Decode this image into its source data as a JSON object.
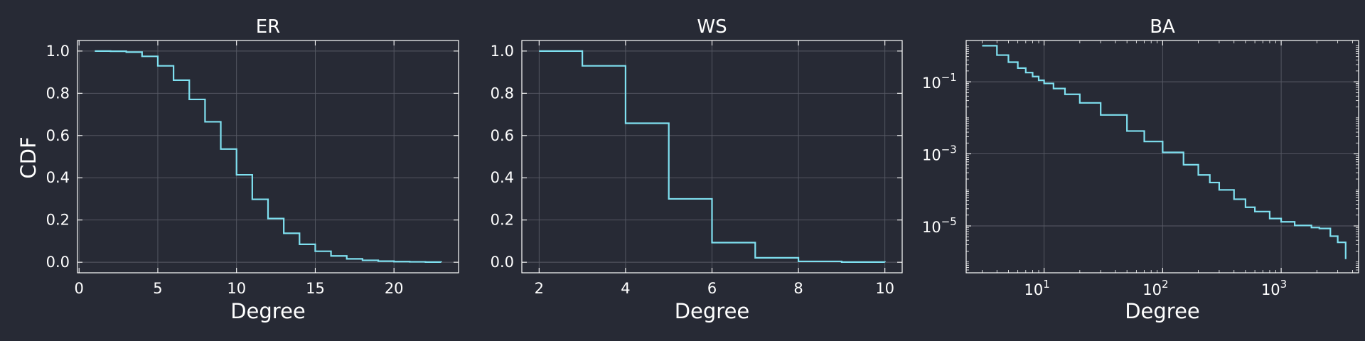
{
  "ylabel": "CDF",
  "line_color": "#7fe0f0",
  "grid": true,
  "chart_data": [
    {
      "type": "line",
      "step": true,
      "title": "ER",
      "xlabel": "Degree",
      "ylabel": "CDF",
      "xscale": "linear",
      "yscale": "linear",
      "xlim": [
        -0.1,
        24.1
      ],
      "ylim": [
        -0.05,
        1.05
      ],
      "xticks": [
        0,
        5,
        10,
        15,
        20
      ],
      "yticks": [
        0.0,
        0.2,
        0.4,
        0.6,
        0.8,
        1.0
      ],
      "xtick_labels": [
        "0",
        "5",
        "10",
        "15",
        "20"
      ],
      "ytick_labels": [
        "0.0",
        "0.2",
        "0.4",
        "0.6",
        "0.8",
        "1.0"
      ],
      "series": [
        {
          "x": [
            1,
            2,
            3,
            4,
            5,
            6,
            7,
            8,
            9,
            10,
            11,
            12,
            13,
            14,
            15,
            16,
            17,
            18,
            19,
            20,
            21,
            22,
            23
          ],
          "y": [
            1.0,
            0.999,
            0.995,
            0.975,
            0.93,
            0.862,
            0.771,
            0.665,
            0.536,
            0.414,
            0.298,
            0.207,
            0.137,
            0.085,
            0.052,
            0.03,
            0.016,
            0.009,
            0.005,
            0.003,
            0.002,
            0.001,
            0.0005
          ]
        }
      ]
    },
    {
      "type": "line",
      "step": true,
      "title": "WS",
      "xlabel": "Degree",
      "xscale": "linear",
      "yscale": "linear",
      "xlim": [
        1.6,
        10.4
      ],
      "ylim": [
        -0.05,
        1.05
      ],
      "xticks": [
        2,
        4,
        6,
        8,
        10
      ],
      "yticks": [
        0.0,
        0.2,
        0.4,
        0.6,
        0.8,
        1.0
      ],
      "xtick_labels": [
        "2",
        "4",
        "6",
        "8",
        "10"
      ],
      "ytick_labels": [
        "0.0",
        "0.2",
        "0.4",
        "0.6",
        "0.8",
        "1.0"
      ],
      "series": [
        {
          "x": [
            2,
            3,
            4,
            5,
            6,
            7,
            8,
            9,
            10
          ],
          "y": [
            1.0,
            0.93,
            0.658,
            0.3,
            0.093,
            0.021,
            0.004,
            0.001,
            0.0002
          ]
        }
      ]
    },
    {
      "type": "line",
      "step": true,
      "title": "BA",
      "xlabel": "Degree",
      "xscale": "log",
      "yscale": "log",
      "xlim": [
        2.2,
        4500
      ],
      "ylim": [
        5e-07,
        1.4
      ],
      "xticks": [
        10,
        100,
        1000
      ],
      "yticks": [
        0.1,
        0.001,
        1e-05
      ],
      "xtick_base": [
        "10",
        "10",
        "10"
      ],
      "xtick_exp": [
        "1",
        "2",
        "3"
      ],
      "ytick_base": [
        "10",
        "10",
        "10"
      ],
      "ytick_exp": [
        "−1",
        "−3",
        "−5"
      ],
      "series": [
        {
          "x": [
            3,
            4,
            5,
            6,
            7,
            8,
            9,
            10,
            12,
            15,
            20,
            30,
            50,
            70,
            100,
            150,
            200,
            250,
            300,
            400,
            500,
            600,
            800,
            1000,
            1300,
            1800,
            2100,
            2600,
            3000,
            3500
          ],
          "y": [
            1.0,
            0.55,
            0.35,
            0.24,
            0.18,
            0.14,
            0.11,
            0.09,
            0.065,
            0.045,
            0.026,
            0.012,
            0.0043,
            0.0022,
            0.0011,
            0.0005,
            0.00026,
            0.00016,
            0.0001,
            5.5e-05,
            3.3e-05,
            2.5e-05,
            1.6e-05,
            1.3e-05,
            1.03e-05,
            9e-06,
            8.5e-06,
            5.2e-06,
            3.5e-06,
            1.2e-06
          ]
        }
      ]
    }
  ]
}
